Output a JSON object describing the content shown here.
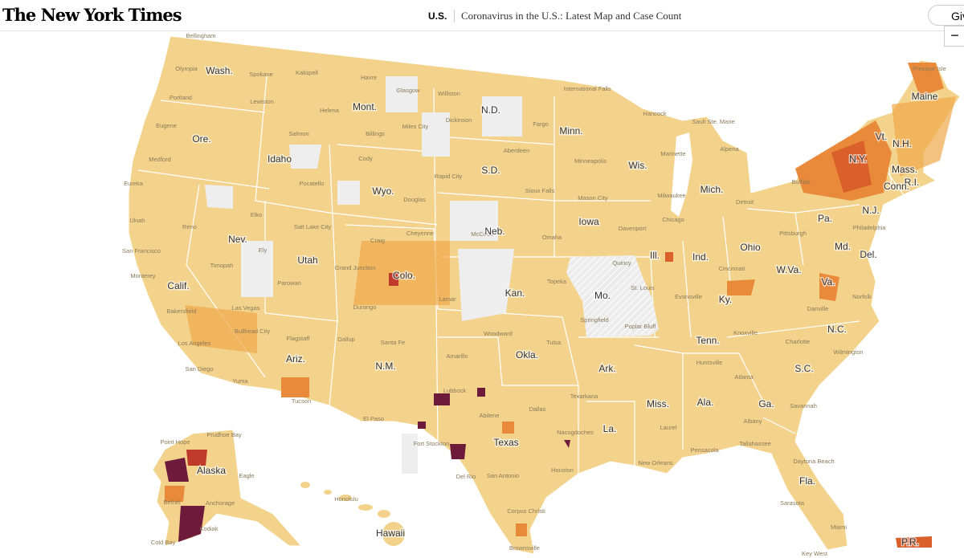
{
  "header": {
    "logo": "The New York Times",
    "section": "U.S.",
    "headline": "Coronavirus in the U.S.: Latest Map and Case Count",
    "button": "Giv",
    "zoom_out": "−"
  },
  "map": {
    "states": [
      "Wash.",
      "Ore.",
      "Calif.",
      "Idaho",
      "Nev.",
      "Utah",
      "Ariz.",
      "Mont.",
      "Wyo.",
      "Colo.",
      "N.M.",
      "N.D.",
      "S.D.",
      "Neb.",
      "Kan.",
      "Okla.",
      "Texas",
      "Minn.",
      "Iowa",
      "Mo.",
      "Ark.",
      "La.",
      "Wis.",
      "Ill.",
      "Mich.",
      "Ind.",
      "Ohio",
      "Ky.",
      "Tenn.",
      "Miss.",
      "Ala.",
      "Ga.",
      "Fla.",
      "S.C.",
      "N.C.",
      "Va.",
      "W.Va.",
      "Pa.",
      "N.Y.",
      "Vt.",
      "N.H.",
      "Maine",
      "Mass.",
      "R.I.",
      "Conn.",
      "N.J.",
      "Del.",
      "Md.",
      "Alaska",
      "Hawaii",
      "P.R."
    ],
    "cities": [
      "Bellingham",
      "Olympia",
      "Spokane",
      "Portland",
      "Lewiston",
      "Eugene",
      "Medford",
      "Eureka",
      "Ukiah",
      "Reno",
      "San Francisco",
      "Monterey",
      "Bakersfield",
      "Los Angeles",
      "San Diego",
      "Salmon",
      "Pocatello",
      "Kalispell",
      "Havre",
      "Helena",
      "Billings",
      "Miles City",
      "Glasgow",
      "Williston",
      "Dickinson",
      "Cody",
      "Elko",
      "Ely",
      "Tonopah",
      "Las Vegas",
      "Salt Lake City",
      "Parowan",
      "Bullhead City",
      "Flagstaff",
      "Yuma",
      "Tucson",
      "Gallup",
      "Santa Fe",
      "Douglas",
      "Cheyenne",
      "Craig",
      "Grand Junction",
      "Durango",
      "Lamar",
      "Rapid City",
      "Aberdeen",
      "Sioux Falls",
      "Fargo",
      "International Falls",
      "Minneapolis",
      "Mason City",
      "Omaha",
      "Davenport",
      "McCook",
      "Topeka",
      "Woodward",
      "Amarillo",
      "Tulsa",
      "Lubbock",
      "El Paso",
      "Abilene",
      "Dallas",
      "Texarkana",
      "Nacogdoches",
      "Fort Stockton",
      "Del Rio",
      "San Antonio",
      "Houston",
      "Corpus Christi",
      "Brownsville",
      "New Orleans",
      "Pensacola",
      "Tallahassee",
      "Daytona Beach",
      "Sarasota",
      "Miami",
      "Key West",
      "Albany",
      "Atlanta",
      "Huntsville",
      "Knoxville",
      "Laurel",
      "Savannah",
      "Charlotte",
      "Wilmington",
      "Norfolk",
      "Danville",
      "Evansville",
      "Quincy",
      "St. Louis",
      "Springfield",
      "Poplar Bluff",
      "Chicago",
      "Milwaukee",
      "Marinette",
      "Hancock",
      "Sault Ste. Marie",
      "Alpena",
      "Detroit",
      "Cincinnati",
      "Pittsburgh",
      "Philadelphia",
      "Buffalo",
      "Presque Isle",
      "Point Hope",
      "Prudhoe Bay",
      "Bethel",
      "Anchorage",
      "Kodiak",
      "Eagle",
      "Cold Bay",
      "Honolulu"
    ]
  }
}
